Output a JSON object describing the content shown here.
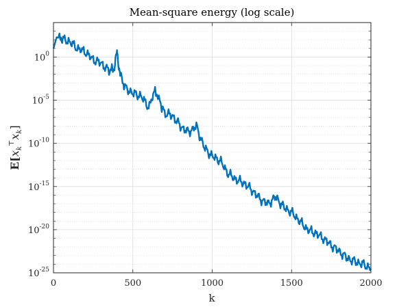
{
  "chart_data": {
    "type": "line",
    "title": "Mean-square energy (log scale)",
    "xlabel": "k",
    "ylabel": {
      "bracket_open": "E[",
      "var1": "x",
      "sub1": "k",
      "sup1": "⊤",
      "var2": "x",
      "sub2": "k",
      "bracket_close": "]"
    },
    "xlim": [
      0,
      2000
    ],
    "ylim_exponent": [
      -25,
      4
    ],
    "yscale": "log",
    "grid": true,
    "minor_grid": true,
    "xticks": [
      "0",
      "500",
      "1000",
      "1500",
      "2000"
    ],
    "yticks": [
      {
        "base": "10",
        "exp": "0"
      },
      {
        "base": "10",
        "exp": "-5"
      },
      {
        "base": "10",
        "exp": "-10"
      },
      {
        "base": "10",
        "exp": "-15"
      },
      {
        "base": "10",
        "exp": "-20"
      },
      {
        "base": "10",
        "exp": "-25"
      }
    ],
    "line_color": "#0072BD",
    "series": [
      {
        "x": [
          0,
          20,
          50,
          100,
          150,
          200,
          250,
          300,
          350,
          380,
          400,
          420,
          450,
          500,
          550,
          600,
          640,
          700,
          750,
          800,
          850,
          900,
          950,
          1000,
          1050,
          1100,
          1150,
          1200,
          1250,
          1300,
          1350,
          1400,
          1450,
          1500,
          1550,
          1600,
          1650,
          1700,
          1750,
          1800,
          1850,
          1900,
          1950,
          2000
        ],
        "y_log10": [
          1.0,
          2.3,
          2.1,
          1.8,
          1.0,
          0.6,
          -0.3,
          -0.7,
          -1.6,
          -1.4,
          0.5,
          -2.0,
          -3.5,
          -4.2,
          -4.5,
          -5.8,
          -3.8,
          -6.5,
          -6.8,
          -8.0,
          -8.7,
          -8.0,
          -10.5,
          -11.5,
          -12.0,
          -13.5,
          -14.2,
          -14.6,
          -15.4,
          -16.4,
          -17.0,
          -16.2,
          -17.4,
          -18.0,
          -19.0,
          -20.0,
          -20.4,
          -21.0,
          -21.8,
          -22.5,
          -23.3,
          -23.7,
          -24.0,
          -24.5
        ]
      }
    ]
  }
}
